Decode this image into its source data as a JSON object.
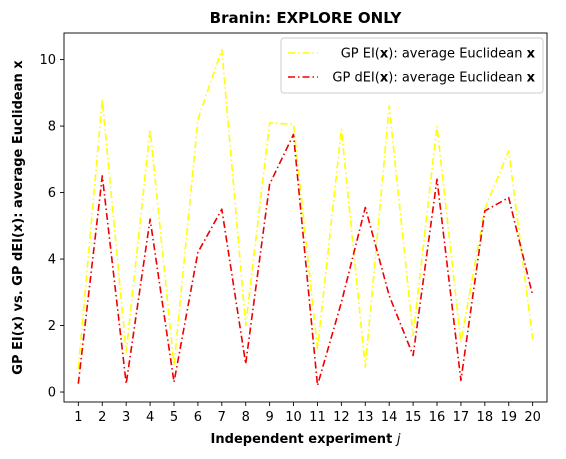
{
  "chart_data": {
    "type": "line",
    "title": "Branin: EXPLORE ONLY",
    "xlabel": "Independent experiment j",
    "ylabel": "GP EI(x) vs. GP dEI(x): average Euclidean x",
    "x": [
      1,
      2,
      3,
      4,
      5,
      6,
      7,
      8,
      9,
      10,
      11,
      12,
      13,
      14,
      15,
      16,
      17,
      18,
      19,
      20
    ],
    "xlim": [
      0.4,
      20.6
    ],
    "ylim": [
      -0.3,
      10.8
    ],
    "xticks": [
      "1",
      "2",
      "3",
      "4",
      "5",
      "6",
      "7",
      "8",
      "9",
      "10",
      "11",
      "12",
      "13",
      "14",
      "15",
      "16",
      "17",
      "18",
      "19",
      "20"
    ],
    "yticks": [
      0,
      2,
      4,
      6,
      8,
      10
    ],
    "grid": false,
    "legend_position": "top-right",
    "series": [
      {
        "name": "GP EI(x): average Euclidean x",
        "color": "#ffff00",
        "line_style": "dash-dot",
        "values": [
          0.7,
          8.8,
          1.2,
          7.9,
          0.8,
          8.2,
          10.3,
          2.0,
          8.1,
          8.05,
          1.3,
          7.9,
          0.75,
          8.6,
          1.7,
          8.0,
          1.5,
          5.5,
          7.25,
          1.6
        ]
      },
      {
        "name": "GP dEI(x): average Euclidean x",
        "color": "#ee0000",
        "line_style": "dash-dot",
        "values": [
          0.25,
          6.5,
          0.25,
          5.2,
          0.3,
          4.2,
          5.5,
          0.85,
          6.25,
          7.75,
          0.2,
          2.7,
          5.55,
          2.9,
          1.1,
          6.4,
          0.35,
          5.45,
          5.85,
          2.9
        ]
      }
    ]
  }
}
